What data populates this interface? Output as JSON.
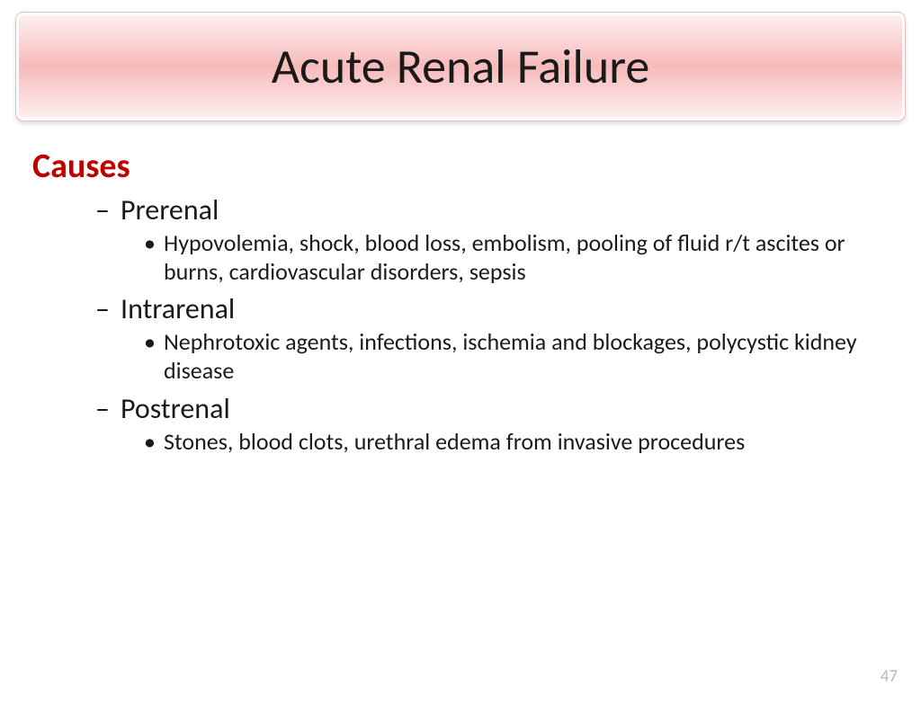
{
  "title": "Acute Renal Failure",
  "heading": "Causes",
  "sections": [
    {
      "label": "Prerenal",
      "detail": "Hypovolemia, shock, blood loss, embolism, pooling of fluid r/t ascites or burns, cardiovascular disorders, sepsis"
    },
    {
      "label": "Intrarenal",
      "detail": "Nephrotoxic agents, infections, ischemia and blockages, polycystic kidney disease"
    },
    {
      "label": "Postrenal",
      "detail": "Stones, blood clots, urethral edema from invasive procedures"
    }
  ],
  "page_number": "47",
  "style": {
    "title_fontsize": 54,
    "heading_fontsize": 38,
    "level1_fontsize": 32,
    "level2_fontsize": 26,
    "pagenum_fontsize": 19,
    "title_gradient_top": "#fef0f0",
    "title_gradient_mid": "#f7baba",
    "heading_color": "#c00000",
    "text_color": "#1a1a1a",
    "pagenum_color": "#b8b8b8",
    "dash_char": "–",
    "bullet_char": "•"
  }
}
